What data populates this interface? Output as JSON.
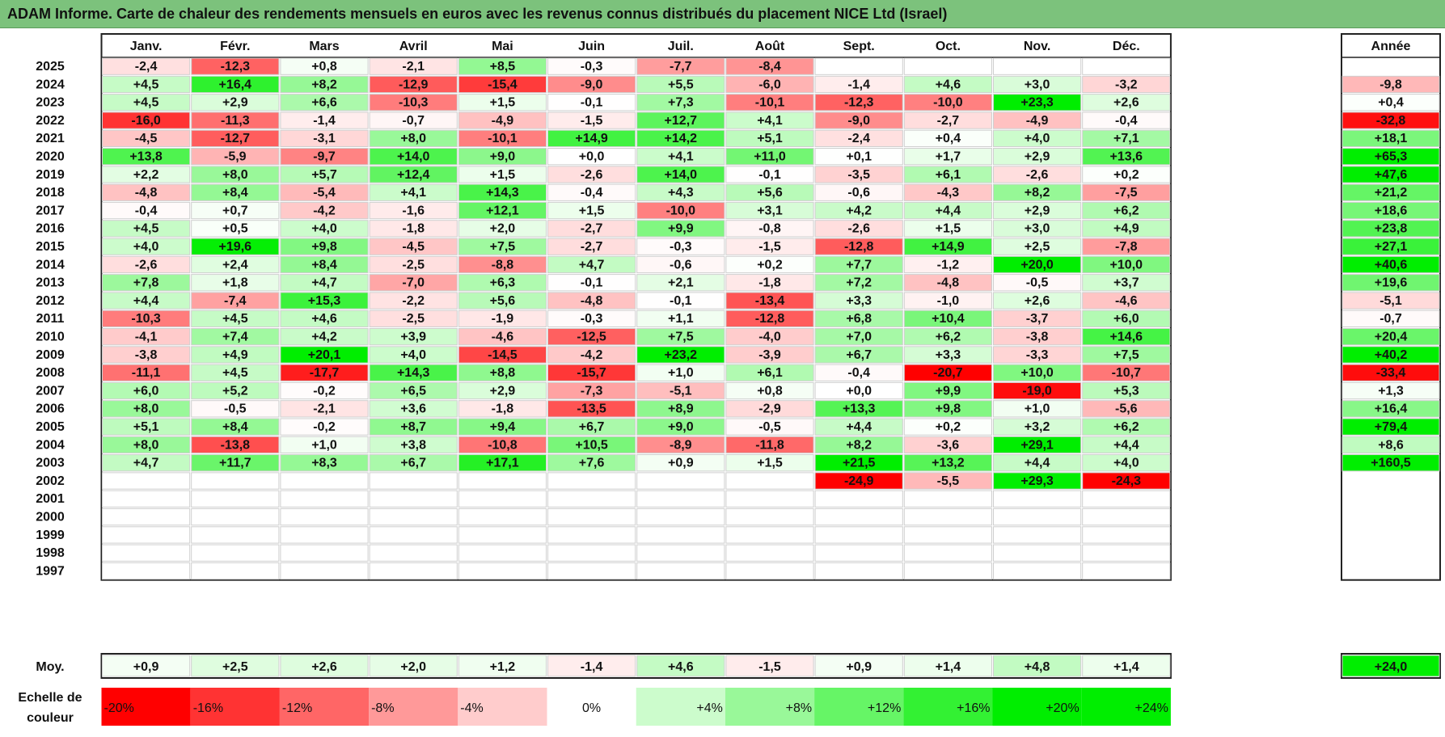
{
  "title": "ADAM Informe. Carte de chaleur des rendements mensuels en euros avec les revenus connus distribués du placement NICE Ltd (Israel)",
  "chart_data": {
    "type": "heatmap",
    "months": [
      "Janv.",
      "Févr.",
      "Mars",
      "Avril",
      "Mai",
      "Juin",
      "Juil.",
      "Août",
      "Sept.",
      "Oct.",
      "Nov.",
      "Déc."
    ],
    "year_header": "Année",
    "rows": [
      {
        "year": "2025",
        "months": [
          "-2,4",
          "-12,3",
          "+0,8",
          "-2,1",
          "+8,5",
          "-0,3",
          "-7,7",
          "-8,4",
          "",
          "",
          "",
          ""
        ],
        "annual": ""
      },
      {
        "year": "2024",
        "months": [
          "+4,5",
          "+16,4",
          "+8,2",
          "-12,9",
          "-15,4",
          "-9,0",
          "+5,5",
          "-6,0",
          "-1,4",
          "+4,6",
          "+3,0",
          "-3,2"
        ],
        "annual": "-9,8"
      },
      {
        "year": "2023",
        "months": [
          "+4,5",
          "+2,9",
          "+6,6",
          "-10,3",
          "+1,5",
          "-0,1",
          "+7,3",
          "-10,1",
          "-12,3",
          "-10,0",
          "+23,3",
          "+2,6"
        ],
        "annual": "+0,4"
      },
      {
        "year": "2022",
        "months": [
          "-16,0",
          "-11,3",
          "-1,4",
          "-0,7",
          "-4,9",
          "-1,5",
          "+12,7",
          "+4,1",
          "-9,0",
          "-2,7",
          "-4,9",
          "-0,4"
        ],
        "annual": "-32,8"
      },
      {
        "year": "2021",
        "months": [
          "-4,5",
          "-12,7",
          "-3,1",
          "+8,0",
          "-10,1",
          "+14,9",
          "+14,2",
          "+5,1",
          "-2,4",
          "+0,4",
          "+4,0",
          "+7,1"
        ],
        "annual": "+18,1"
      },
      {
        "year": "2020",
        "months": [
          "+13,8",
          "-5,9",
          "-9,7",
          "+14,0",
          "+9,0",
          "+0,0",
          "+4,1",
          "+11,0",
          "+0,1",
          "+1,7",
          "+2,9",
          "+13,6"
        ],
        "annual": "+65,3"
      },
      {
        "year": "2019",
        "months": [
          "+2,2",
          "+8,0",
          "+5,7",
          "+12,4",
          "+1,5",
          "-2,6",
          "+14,0",
          "-0,1",
          "-3,5",
          "+6,1",
          "-2,6",
          "+0,2"
        ],
        "annual": "+47,6"
      },
      {
        "year": "2018",
        "months": [
          "-4,8",
          "+8,4",
          "-5,4",
          "+4,1",
          "+14,3",
          "-0,4",
          "+4,3",
          "+5,6",
          "-0,6",
          "-4,3",
          "+8,2",
          "-7,5"
        ],
        "annual": "+21,2"
      },
      {
        "year": "2017",
        "months": [
          "-0,4",
          "+0,7",
          "-4,2",
          "-1,6",
          "+12,1",
          "+1,5",
          "-10,0",
          "+3,1",
          "+4,2",
          "+4,4",
          "+2,9",
          "+6,2"
        ],
        "annual": "+18,6"
      },
      {
        "year": "2016",
        "months": [
          "+4,5",
          "+0,5",
          "+4,0",
          "-1,8",
          "+2,0",
          "-2,7",
          "+9,9",
          "-0,8",
          "-2,6",
          "+1,5",
          "+3,0",
          "+4,9"
        ],
        "annual": "+23,8"
      },
      {
        "year": "2015",
        "months": [
          "+4,0",
          "+19,6",
          "+9,8",
          "-4,5",
          "+7,5",
          "-2,7",
          "-0,3",
          "-1,5",
          "-12,8",
          "+14,9",
          "+2,5",
          "-7,8"
        ],
        "annual": "+27,1"
      },
      {
        "year": "2014",
        "months": [
          "-2,6",
          "+2,4",
          "+8,4",
          "-2,5",
          "-8,8",
          "+4,7",
          "-0,6",
          "+0,2",
          "+7,7",
          "-1,2",
          "+20,0",
          "+10,0"
        ],
        "annual": "+40,6"
      },
      {
        "year": "2013",
        "months": [
          "+7,8",
          "+1,8",
          "+4,7",
          "-7,0",
          "+6,3",
          "-0,1",
          "+2,1",
          "-1,8",
          "+7,2",
          "-4,8",
          "-0,5",
          "+3,7"
        ],
        "annual": "+19,6"
      },
      {
        "year": "2012",
        "months": [
          "+4,4",
          "-7,4",
          "+15,3",
          "-2,2",
          "+5,6",
          "-4,8",
          "-0,1",
          "-13,4",
          "+3,3",
          "-1,0",
          "+2,6",
          "-4,6"
        ],
        "annual": "-5,1"
      },
      {
        "year": "2011",
        "months": [
          "-10,3",
          "+4,5",
          "+4,6",
          "-2,5",
          "-1,9",
          "-0,3",
          "+1,1",
          "-12,8",
          "+6,8",
          "+10,4",
          "-3,7",
          "+6,0"
        ],
        "annual": "-0,7"
      },
      {
        "year": "2010",
        "months": [
          "-4,1",
          "+7,4",
          "+4,2",
          "+3,9",
          "-4,6",
          "-12,5",
          "+7,5",
          "-4,0",
          "+7,0",
          "+6,2",
          "-3,8",
          "+14,6"
        ],
        "annual": "+20,4"
      },
      {
        "year": "2009",
        "months": [
          "-3,8",
          "+4,9",
          "+20,1",
          "+4,0",
          "-14,5",
          "-4,2",
          "+23,2",
          "-3,9",
          "+6,7",
          "+3,3",
          "-3,3",
          "+7,5"
        ],
        "annual": "+40,2"
      },
      {
        "year": "2008",
        "months": [
          "-11,1",
          "+4,5",
          "-17,7",
          "+14,3",
          "+8,8",
          "-15,7",
          "+1,0",
          "+6,1",
          "-0,4",
          "-20,7",
          "+10,0",
          "-10,7"
        ],
        "annual": "-33,4"
      },
      {
        "year": "2007",
        "months": [
          "+6,0",
          "+5,2",
          "-0,2",
          "+6,5",
          "+2,9",
          "-7,3",
          "-5,1",
          "+0,8",
          "+0,0",
          "+9,9",
          "-19,0",
          "+5,3"
        ],
        "annual": "+1,3"
      },
      {
        "year": "2006",
        "months": [
          "+8,0",
          "-0,5",
          "-2,1",
          "+3,6",
          "-1,8",
          "-13,5",
          "+8,9",
          "-2,9",
          "+13,3",
          "+9,8",
          "+1,0",
          "-5,6"
        ],
        "annual": "+16,4"
      },
      {
        "year": "2005",
        "months": [
          "+5,1",
          "+8,4",
          "-0,2",
          "+8,7",
          "+9,4",
          "+6,7",
          "+9,0",
          "-0,5",
          "+4,4",
          "+0,2",
          "+3,2",
          "+6,2"
        ],
        "annual": "+79,4"
      },
      {
        "year": "2004",
        "months": [
          "+8,0",
          "-13,8",
          "+1,0",
          "+3,8",
          "-10,8",
          "+10,5",
          "-8,9",
          "-11,8",
          "+8,2",
          "-3,6",
          "+29,1",
          "+4,4"
        ],
        "annual": "+8,6"
      },
      {
        "year": "2003",
        "months": [
          "+4,7",
          "+11,7",
          "+8,3",
          "+6,7",
          "+17,1",
          "+7,6",
          "+0,9",
          "+1,5",
          "+21,5",
          "+13,2",
          "+4,4",
          "+4,0"
        ],
        "annual": "+160,5"
      },
      {
        "year": "2002",
        "months": [
          "",
          "",
          "",
          "",
          "",
          "",
          "",
          "",
          "-24,9",
          "-5,5",
          "+29,3",
          "-24,3"
        ],
        "annual": ""
      },
      {
        "year": "2001",
        "months": [
          "",
          "",
          "",
          "",
          "",
          "",
          "",
          "",
          "",
          "",
          "",
          ""
        ],
        "annual": ""
      },
      {
        "year": "2000",
        "months": [
          "",
          "",
          "",
          "",
          "",
          "",
          "",
          "",
          "",
          "",
          "",
          ""
        ],
        "annual": ""
      },
      {
        "year": "1999",
        "months": [
          "",
          "",
          "",
          "",
          "",
          "",
          "",
          "",
          "",
          "",
          "",
          ""
        ],
        "annual": ""
      },
      {
        "year": "1998",
        "months": [
          "",
          "",
          "",
          "",
          "",
          "",
          "",
          "",
          "",
          "",
          "",
          ""
        ],
        "annual": ""
      },
      {
        "year": "1997",
        "months": [
          "",
          "",
          "",
          "",
          "",
          "",
          "",
          "",
          "",
          "",
          "",
          ""
        ],
        "annual": ""
      }
    ],
    "average": {
      "label": "Moy.",
      "months": [
        "+0,9",
        "+2,5",
        "+2,6",
        "+2,0",
        "+1,2",
        "-1,4",
        "+4,6",
        "-1,5",
        "+0,9",
        "+1,4",
        "+4,8",
        "+1,4"
      ],
      "annual": "+24,0"
    },
    "scale": {
      "label_line1": "Echelle de",
      "label_line2": "couleur",
      "steps": [
        "-20%",
        "-16%",
        "-12%",
        "-8%",
        "-4%",
        "0%",
        "+4%",
        "+8%",
        "+12%",
        "+16%",
        "+20%",
        "+24%"
      ]
    },
    "colors": {
      "negative": "#ff0000",
      "zero": "#ffffff",
      "positive": "#00ee00",
      "title_bg": "#7cc27c"
    }
  }
}
